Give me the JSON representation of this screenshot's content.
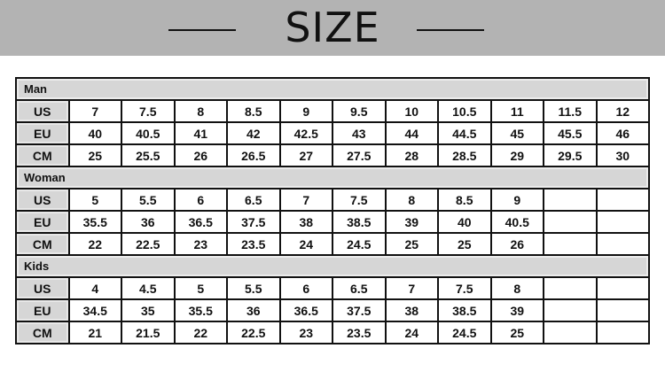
{
  "header": {
    "title": "SIZE"
  },
  "sections": [
    {
      "name": "Man",
      "rows": [
        {
          "label": "US",
          "values": [
            "7",
            "7.5",
            "8",
            "8.5",
            "9",
            "9.5",
            "10",
            "10.5",
            "11",
            "11.5",
            "12"
          ]
        },
        {
          "label": "EU",
          "values": [
            "40",
            "40.5",
            "41",
            "42",
            "42.5",
            "43",
            "44",
            "44.5",
            "45",
            "45.5",
            "46"
          ]
        },
        {
          "label": "CM",
          "values": [
            "25",
            "25.5",
            "26",
            "26.5",
            "27",
            "27.5",
            "28",
            "28.5",
            "29",
            "29.5",
            "30"
          ]
        }
      ]
    },
    {
      "name": "Woman",
      "rows": [
        {
          "label": "US",
          "values": [
            "5",
            "5.5",
            "6",
            "6.5",
            "7",
            "7.5",
            "8",
            "8.5",
            "9",
            "",
            ""
          ]
        },
        {
          "label": "EU",
          "values": [
            "35.5",
            "36",
            "36.5",
            "37.5",
            "38",
            "38.5",
            "39",
            "40",
            "40.5",
            "",
            ""
          ]
        },
        {
          "label": "CM",
          "values": [
            "22",
            "22.5",
            "23",
            "23.5",
            "24",
            "24.5",
            "25",
            "25",
            "26",
            "",
            ""
          ]
        }
      ]
    },
    {
      "name": "Kids",
      "rows": [
        {
          "label": "US",
          "values": [
            "4",
            "4.5",
            "5",
            "5.5",
            "6",
            "6.5",
            "7",
            "7.5",
            "8",
            "",
            ""
          ]
        },
        {
          "label": "EU",
          "values": [
            "34.5",
            "35",
            "35.5",
            "36",
            "36.5",
            "37.5",
            "38",
            "38.5",
            "39",
            "",
            ""
          ]
        },
        {
          "label": "CM",
          "values": [
            "21",
            "21.5",
            "22",
            "22.5",
            "23",
            "23.5",
            "24",
            "24.5",
            "25",
            "",
            ""
          ]
        }
      ]
    }
  ]
}
